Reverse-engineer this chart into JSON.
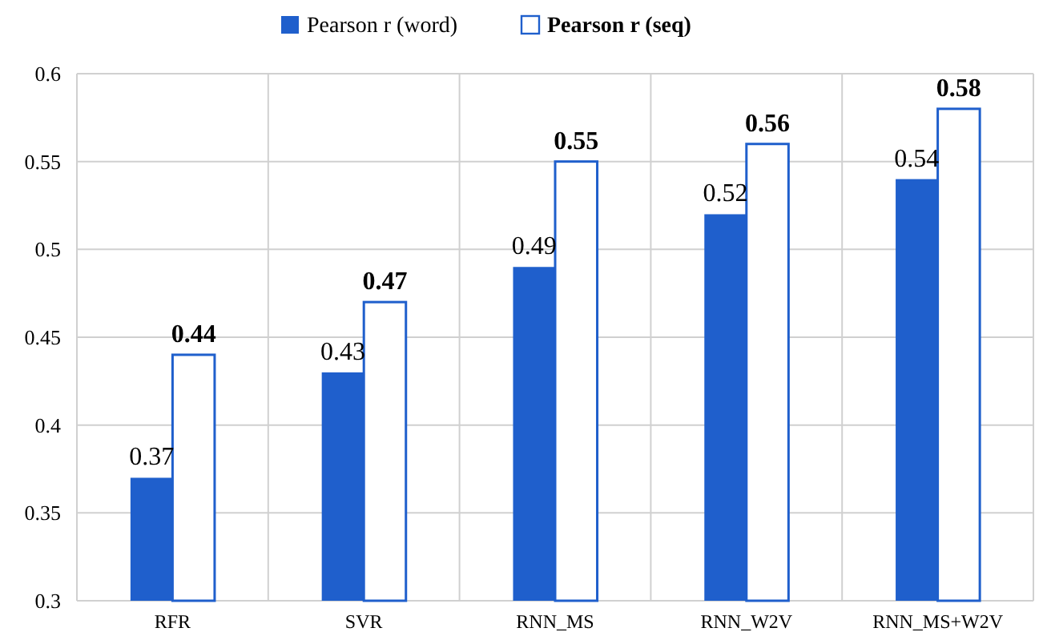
{
  "chart_data": {
    "type": "bar",
    "categories": [
      "RFR",
      "SVR",
      "RNN_MS",
      "RNN_W2V",
      "RNN_MS+W2V"
    ],
    "series": [
      {
        "name": "Pearson r (word)",
        "color": "#1f5fcc",
        "values": [
          0.37,
          0.43,
          0.49,
          0.52,
          0.54
        ]
      },
      {
        "name": "Pearson r (seq)",
        "color": "#ffffff",
        "values": [
          0.44,
          0.47,
          0.55,
          0.56,
          0.58
        ]
      }
    ],
    "ylim": [
      0.3,
      0.6
    ],
    "yticks": [
      0.3,
      0.35,
      0.4,
      0.45,
      0.5,
      0.55,
      0.6
    ],
    "grid": true,
    "legend": "top",
    "data_labels": true
  }
}
